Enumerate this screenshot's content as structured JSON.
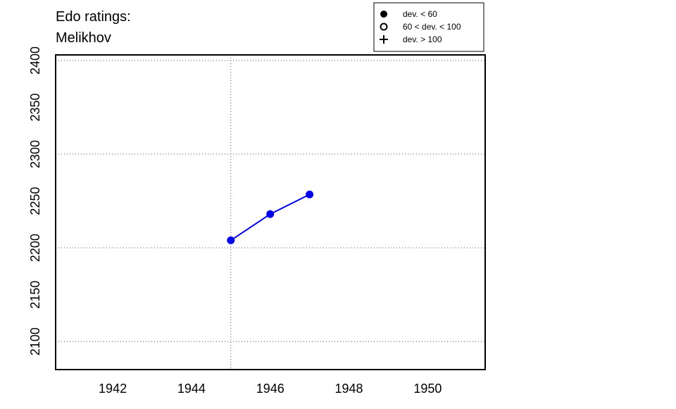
{
  "chart_data": {
    "type": "line",
    "title": [
      "Edo ratings:",
      "Melikhov"
    ],
    "x": [
      1945,
      1946,
      1947
    ],
    "series": [
      {
        "color": "#0000ee",
        "marker": "filled-circle",
        "values": [
          2208,
          2236,
          2257
        ]
      }
    ],
    "xlim": [
      1940.55,
      1951.46
    ],
    "ylim": [
      2070,
      2406
    ],
    "xticks": [
      1942,
      1944,
      1946,
      1948,
      1950
    ],
    "yticks": [
      2100,
      2150,
      2200,
      2250,
      2300,
      2350,
      2400
    ],
    "xgrid": [
      1945
    ],
    "ygrid": [
      2100,
      2200,
      2300,
      2400
    ],
    "legend": {
      "position": "top-right-outside",
      "entries": [
        {
          "label": "dev. < 60",
          "marker": "filled-circle"
        },
        {
          "label": "60 < dev. < 100",
          "marker": "open-circle"
        },
        {
          "label": "dev. > 100",
          "marker": "plus"
        }
      ]
    }
  }
}
